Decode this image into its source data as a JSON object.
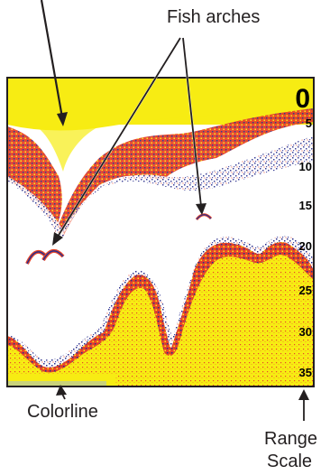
{
  "callouts": {
    "fish_arches": "Fish arches",
    "colorline": "Colorline",
    "range_scale_line1": "Range",
    "range_scale_line2": "Scale"
  },
  "range_scale": {
    "top": "0",
    "ticks": [
      "5",
      "10",
      "15",
      "20",
      "25",
      "30",
      "35"
    ]
  },
  "colors": {
    "background": "#ffffff",
    "echo_strong": "#f7ec13",
    "echo_medium": "#e8462a",
    "echo_weak": "#2b2f8c",
    "frame": "#231f20",
    "text": "#231f20"
  }
}
